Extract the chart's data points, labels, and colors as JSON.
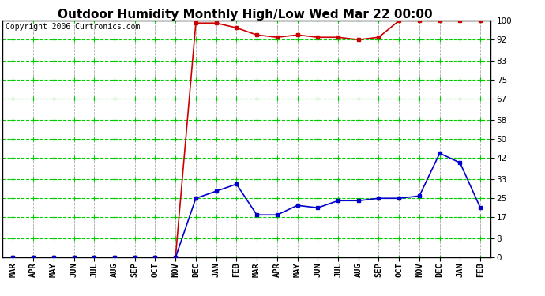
{
  "title": "Outdoor Humidity Monthly High/Low Wed Mar 22 00:00",
  "copyright": "Copyright 2006 Curtronics.com",
  "x_labels": [
    "MAR",
    "APR",
    "MAY",
    "JUN",
    "JUL",
    "AUG",
    "SEP",
    "OCT",
    "NOV",
    "DEC",
    "JAN",
    "FEB",
    "MAR",
    "APR",
    "MAY",
    "JUN",
    "JUL",
    "AUG",
    "SEP",
    "OCT",
    "NOV",
    "DEC",
    "JAN",
    "FEB"
  ],
  "high_values": [
    0,
    0,
    0,
    0,
    0,
    0,
    0,
    0,
    0,
    99,
    99,
    97,
    94,
    93,
    94,
    93,
    93,
    92,
    93,
    100,
    100,
    100,
    100,
    100
  ],
  "low_values": [
    0,
    0,
    0,
    0,
    0,
    0,
    0,
    0,
    0,
    25,
    28,
    31,
    18,
    18,
    22,
    21,
    24,
    24,
    25,
    25,
    26,
    44,
    40,
    21
  ],
  "y_ticks": [
    0,
    8,
    17,
    25,
    33,
    42,
    50,
    58,
    67,
    75,
    83,
    92,
    100
  ],
  "high_color": "#cc0000",
  "low_color": "#0000cc",
  "bg_color": "#ffffff",
  "grid_color": "#00cc00",
  "vgrid_color": "#aaaaaa",
  "title_fontsize": 11,
  "copyright_fontsize": 7,
  "tick_fontsize": 7.5
}
